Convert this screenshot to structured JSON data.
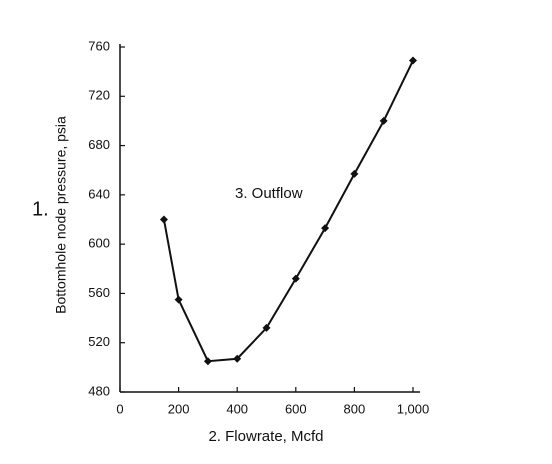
{
  "chart_data": {
    "type": "line",
    "x_label": "2. Flowrate, Mcfd",
    "y_label": "Bottomhole node pressure, psia",
    "annotations": [
      "1.",
      "3. Outflow"
    ],
    "series": [
      {
        "color": "#111111",
        "x": [
          150,
          200,
          300,
          400,
          500,
          600,
          700,
          800,
          900,
          1000
        ],
        "values": [
          620,
          555,
          505,
          507,
          532,
          572,
          613,
          657,
          700,
          749
        ]
      }
    ],
    "xlim": [
      0,
      1000
    ],
    "xticks": [
      0,
      200,
      400,
      600,
      800,
      {
        "value": 1000,
        "label": "1,000"
      }
    ],
    "ylim": [
      480,
      760
    ],
    "yticks": [
      480,
      520,
      560,
      600,
      640,
      680,
      720,
      760
    ],
    "grid": false
  }
}
